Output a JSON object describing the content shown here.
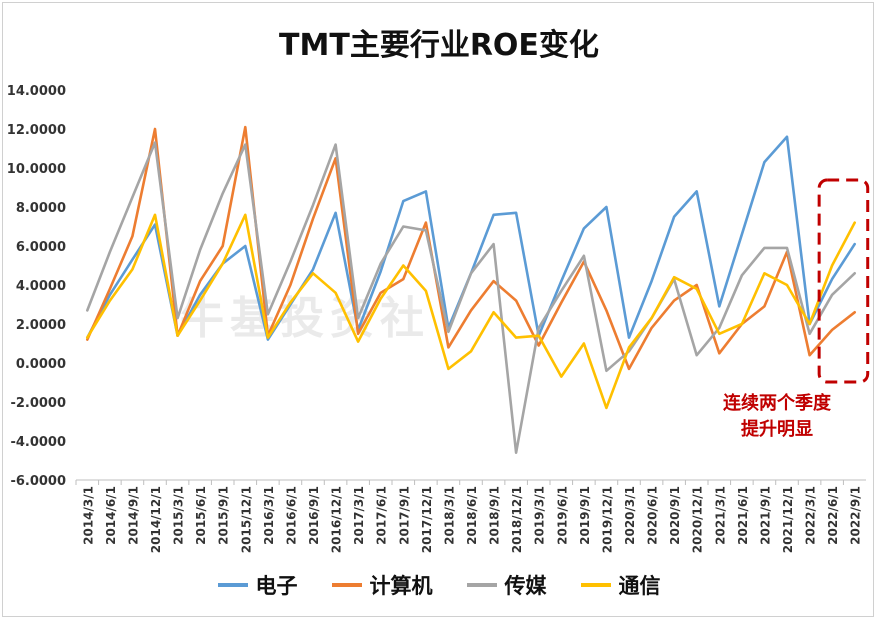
{
  "title": "TMT主要行业ROE变化",
  "watermark": "牛基投资社",
  "annotation": [
    "连续两个季度",
    "提升明显"
  ],
  "colors": {
    "电子": "#5b9bd5",
    "计算机": "#ed7d31",
    "传媒": "#a5a5a5",
    "通信": "#ffc000",
    "annotation": "#c00000"
  },
  "chart_data": {
    "type": "line",
    "title": "TMT主要行业ROE变化",
    "ylim": [
      -6,
      14
    ],
    "yticks": [
      "14.0000",
      "12.0000",
      "10.0000",
      "8.0000",
      "6.0000",
      "4.0000",
      "2.0000",
      "0.0000",
      "-2.0000",
      "-4.0000",
      "-6.0000"
    ],
    "grid": false,
    "legend_position": "bottom",
    "categories": [
      "2014/3/1",
      "2014/6/1",
      "2014/9/1",
      "2014/12/1",
      "2015/3/1",
      "2015/6/1",
      "2015/9/1",
      "2015/12/1",
      "2016/3/1",
      "2016/6/1",
      "2016/9/1",
      "2016/12/1",
      "2017/3/1",
      "2017/6/1",
      "2017/9/1",
      "2017/12/1",
      "2018/3/1",
      "2018/6/1",
      "2018/9/1",
      "2018/12/1",
      "2019/3/1",
      "2019/6/1",
      "2019/9/1",
      "2019/12/1",
      "2020/3/1",
      "2020/6/1",
      "2020/9/1",
      "2020/12/1",
      "2021/3/1",
      "2021/6/1",
      "2021/9/1",
      "2021/12/1",
      "2022/3/1",
      "2022/6/1",
      "2022/9/1"
    ],
    "series": [
      {
        "name": "电子",
        "values": [
          1.3,
          3.5,
          5.3,
          7.1,
          1.4,
          3.5,
          5.1,
          6.0,
          1.2,
          3.0,
          4.8,
          7.7,
          1.7,
          4.7,
          8.3,
          8.8,
          1.8,
          4.6,
          7.6,
          7.7,
          1.4,
          4.2,
          6.9,
          8.0,
          1.3,
          4.2,
          7.5,
          8.8,
          2.9,
          6.6,
          10.3,
          11.6,
          2.0,
          4.3,
          6.1
        ]
      },
      {
        "name": "计算机",
        "values": [
          1.2,
          3.8,
          6.5,
          12.0,
          1.4,
          4.2,
          6.0,
          12.1,
          1.4,
          4.0,
          7.4,
          10.5,
          1.5,
          3.6,
          4.3,
          7.2,
          0.8,
          2.7,
          4.2,
          3.2,
          0.9,
          3.1,
          5.2,
          2.7,
          -0.3,
          1.8,
          3.2,
          4.0,
          0.5,
          2.0,
          2.9,
          5.7,
          0.4,
          1.7,
          2.6
        ]
      },
      {
        "name": "传媒",
        "values": [
          2.7,
          5.7,
          8.5,
          11.3,
          2.3,
          5.8,
          8.7,
          11.2,
          2.5,
          5.2,
          8.1,
          11.2,
          2.3,
          5.1,
          7.0,
          6.8,
          1.6,
          4.6,
          6.1,
          -4.6,
          1.8,
          3.7,
          5.5,
          -0.4,
          0.6,
          2.3,
          4.3,
          0.4,
          1.8,
          4.5,
          5.9,
          5.9,
          1.5,
          3.5,
          4.6
        ]
      },
      {
        "name": "通信",
        "values": [
          1.3,
          3.2,
          4.8,
          7.6,
          1.4,
          3.2,
          5.1,
          7.6,
          1.3,
          3.1,
          4.6,
          3.6,
          1.1,
          3.3,
          5.0,
          3.7,
          -0.3,
          0.6,
          2.6,
          1.3,
          1.4,
          -0.7,
          1.0,
          -2.3,
          0.8,
          2.3,
          4.4,
          3.8,
          1.5,
          2.0,
          4.6,
          4.0,
          2.0,
          5.0,
          7.2
        ]
      }
    ]
  }
}
